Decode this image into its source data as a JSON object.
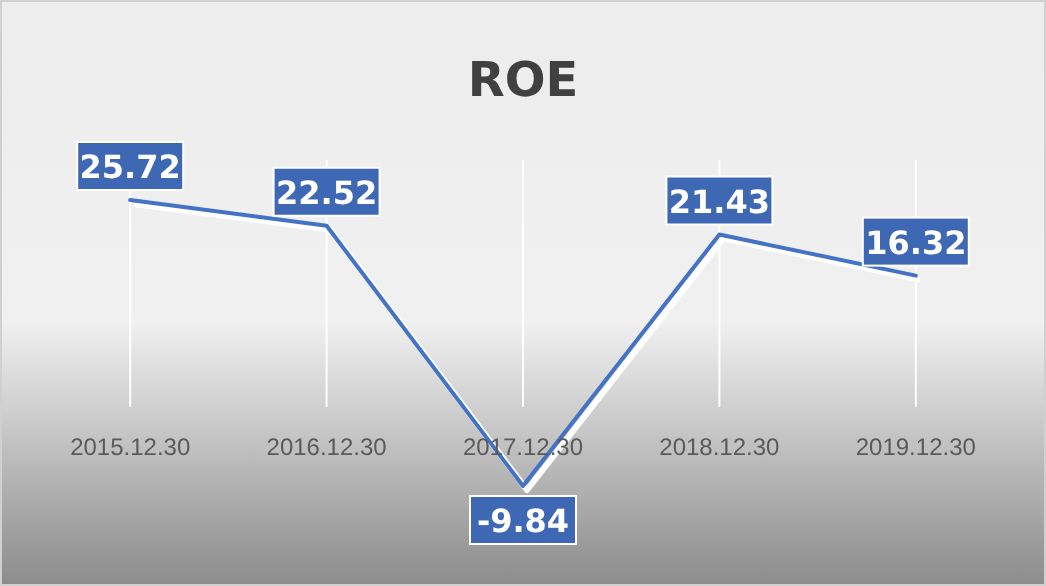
{
  "chart_data": {
    "type": "line",
    "title": "ROE",
    "categories": [
      "2015.12.30",
      "2016.12.30",
      "2017.12.30",
      "2018.12.30",
      "2019.12.30"
    ],
    "series": [
      {
        "color": "#4472c4",
        "values": [
          25.72,
          22.52,
          -9.84,
          21.43,
          16.32
        ]
      }
    ],
    "data_labels": true,
    "grid": "x",
    "line_style": "solid"
  }
}
